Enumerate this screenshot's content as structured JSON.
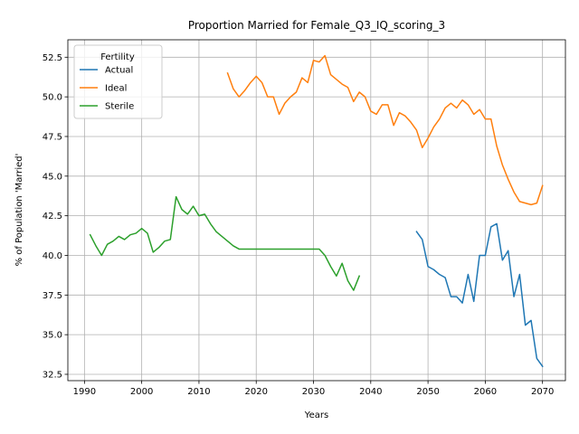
{
  "chart_data": {
    "type": "line",
    "title": "Proportion Married for Female_Q3_IQ_scoring_3",
    "xlabel": "Years",
    "ylabel": "% of Population 'Married'",
    "xlim": [
      1987.1,
      2074.0
    ],
    "ylim": [
      32.1,
      53.6
    ],
    "xticks": [
      1990,
      2000,
      2010,
      2020,
      2030,
      2040,
      2050,
      2060,
      2070
    ],
    "yticks": [
      32.5,
      35.0,
      37.5,
      40.0,
      42.5,
      45.0,
      47.5,
      50.0,
      52.5
    ],
    "ytick_labels": [
      "32.5",
      "35.0",
      "37.5",
      "40.0",
      "42.5",
      "45.0",
      "47.5",
      "50.0",
      "52.5"
    ],
    "grid": true,
    "legend": {
      "title": "Fertility",
      "position": "top-left"
    },
    "series": [
      {
        "name": "Actual",
        "color": "#1f77b4",
        "x": [
          2048,
          2049,
          2050,
          2051,
          2052,
          2053,
          2054,
          2055,
          2056,
          2057,
          2058,
          2059,
          2060,
          2061,
          2062,
          2063,
          2064,
          2065,
          2066,
          2067,
          2068,
          2069,
          2070
        ],
        "y": [
          41.5,
          41.0,
          39.3,
          39.1,
          38.8,
          38.6,
          37.4,
          37.4,
          37.0,
          38.8,
          37.1,
          40.0,
          40.0,
          41.8,
          42.0,
          39.7,
          40.3,
          37.4,
          38.8,
          35.6,
          35.9,
          33.5,
          33.0
        ]
      },
      {
        "name": "Ideal",
        "color": "#ff7f0e",
        "x": [
          2015,
          2016,
          2017,
          2018,
          2019,
          2020,
          2021,
          2022,
          2023,
          2024,
          2025,
          2026,
          2027,
          2028,
          2029,
          2030,
          2031,
          2032,
          2033,
          2034,
          2035,
          2036,
          2037,
          2038,
          2039,
          2040,
          2041,
          2042,
          2043,
          2044,
          2045,
          2046,
          2047,
          2048,
          2049,
          2050,
          2051,
          2052,
          2053,
          2054,
          2055,
          2056,
          2057,
          2058,
          2059,
          2060,
          2061,
          2062,
          2063,
          2064,
          2065,
          2066,
          2067,
          2068,
          2069,
          2070
        ],
        "y": [
          51.5,
          50.5,
          50.0,
          50.4,
          50.9,
          51.3,
          50.9,
          50.0,
          50.0,
          48.9,
          49.6,
          50.0,
          50.3,
          51.2,
          50.9,
          52.3,
          52.2,
          52.6,
          51.4,
          51.1,
          50.8,
          50.6,
          49.7,
          50.3,
          50.0,
          49.1,
          48.9,
          49.5,
          49.5,
          48.2,
          49.0,
          48.8,
          48.4,
          47.9,
          46.8,
          47.4,
          48.1,
          48.6,
          49.3,
          49.6,
          49.3,
          49.8,
          49.5,
          48.9,
          49.2,
          48.6,
          48.6,
          46.9,
          45.7,
          44.8,
          44.0,
          43.4,
          43.3,
          43.2,
          43.3,
          44.4
        ]
      },
      {
        "name": "Sterile",
        "color": "#2ca02c",
        "x": [
          1991,
          1992,
          1993,
          1994,
          1995,
          1996,
          1997,
          1998,
          1999,
          2000,
          2001,
          2002,
          2003,
          2004,
          2005,
          2006,
          2007,
          2008,
          2009,
          2010,
          2011,
          2012,
          2013,
          2014,
          2015,
          2016,
          2017,
          2018,
          2019,
          2020,
          2021,
          2022,
          2023,
          2024,
          2025,
          2026,
          2027,
          2028,
          2029,
          2030,
          2031,
          2032,
          2033,
          2034,
          2035,
          2036,
          2037,
          2038
        ],
        "y": [
          41.3,
          40.6,
          40.0,
          40.7,
          40.9,
          41.2,
          41.0,
          41.3,
          41.4,
          41.7,
          41.4,
          40.2,
          40.5,
          40.9,
          41.0,
          43.7,
          42.9,
          42.6,
          43.1,
          42.5,
          42.6,
          42.0,
          41.5,
          41.2,
          40.9,
          40.6,
          40.4,
          40.4,
          40.4,
          40.4,
          40.4,
          40.4,
          40.4,
          40.4,
          40.4,
          40.4,
          40.4,
          40.4,
          40.4,
          40.4,
          40.4,
          40.0,
          39.3,
          38.7,
          39.5,
          38.4,
          37.8,
          38.7
        ]
      }
    ]
  }
}
